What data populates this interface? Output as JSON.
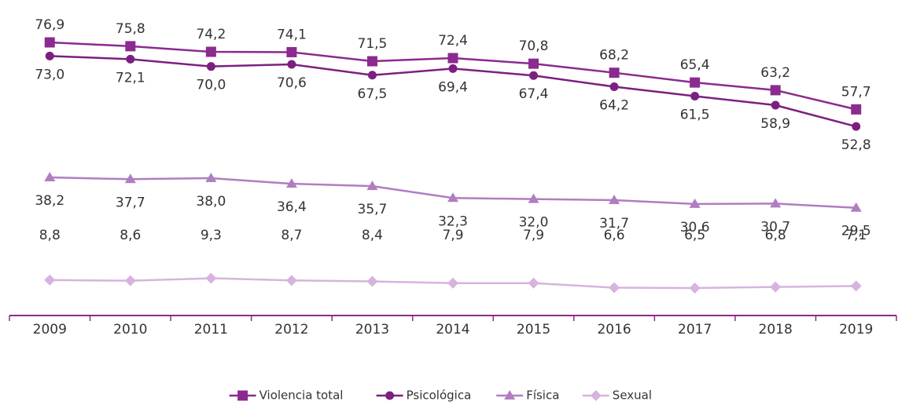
{
  "chart_data": {
    "type": "line",
    "categories": [
      "2009",
      "2010",
      "2011",
      "2012",
      "2013",
      "2014",
      "2015",
      "2016",
      "2017",
      "2018",
      "2019"
    ],
    "series": [
      {
        "name": "Violencia total",
        "color": "#8b2a8f",
        "marker": "square",
        "values": [
          76.9,
          75.8,
          74.2,
          74.1,
          71.5,
          72.4,
          70.8,
          68.2,
          65.4,
          63.2,
          57.7
        ],
        "value_labels": [
          "76,9",
          "75,8",
          "74,2",
          "74,1",
          "71,5",
          "72,4",
          "70,8",
          "68,2",
          "65,4",
          "63,2",
          "57,7"
        ]
      },
      {
        "name": "Psicológica",
        "color": "#7c1f80",
        "marker": "circle",
        "values": [
          73.0,
          72.1,
          70.0,
          70.6,
          67.5,
          69.4,
          67.4,
          64.2,
          61.5,
          58.9,
          52.8
        ],
        "value_labels": [
          "73,0",
          "72,1",
          "70,0",
          "70,6",
          "67,5",
          "69,4",
          "67,4",
          "64,2",
          "61,5",
          "58,9",
          "52,8"
        ]
      },
      {
        "name": "Física",
        "color": "#b07dc2",
        "marker": "triangle",
        "values": [
          38.2,
          37.7,
          38.0,
          36.4,
          35.7,
          32.3,
          32.0,
          31.7,
          30.6,
          30.7,
          29.5
        ],
        "value_labels": [
          "38,2",
          "37,7",
          "38,0",
          "36,4",
          "35,7",
          "32,3",
          "32,0",
          "31,7",
          "30,6",
          "30,7",
          "29,5"
        ]
      },
      {
        "name": "Sexual",
        "color": "#d7b3df",
        "marker": "diamond",
        "values": [
          8.8,
          8.6,
          9.3,
          8.7,
          8.4,
          7.9,
          7.9,
          6.6,
          6.5,
          6.8,
          7.1
        ],
        "value_labels": [
          "8,8",
          "8,6",
          "9,3",
          "8,7",
          "8,4",
          "7,9",
          "7,9",
          "6,6",
          "6,5",
          "6,8",
          "7,1"
        ]
      }
    ]
  }
}
